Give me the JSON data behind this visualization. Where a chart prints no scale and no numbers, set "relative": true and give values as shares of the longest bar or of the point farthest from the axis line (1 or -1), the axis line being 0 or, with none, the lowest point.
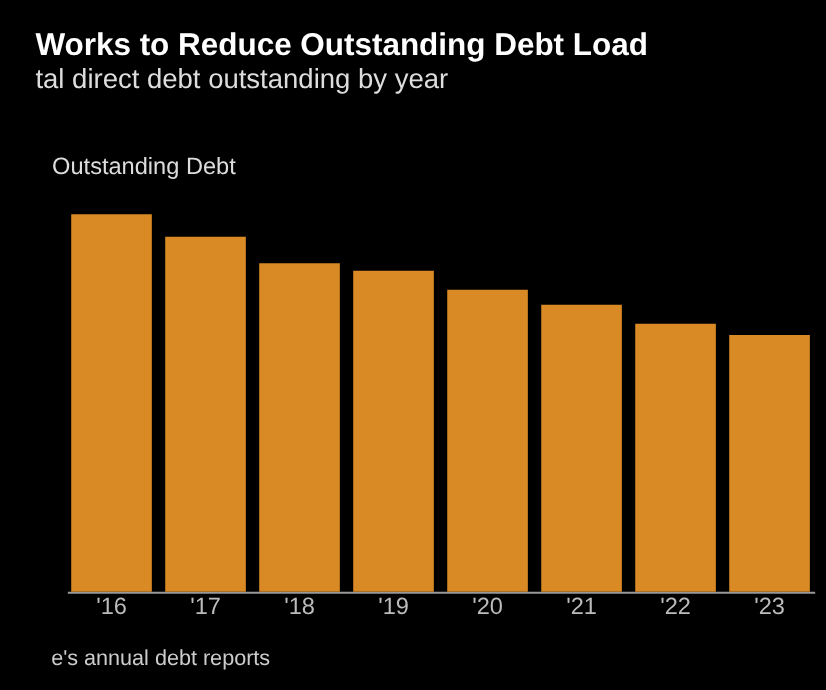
{
  "chart_data": {
    "type": "bar",
    "title": "Works to Reduce Outstanding Debt Load",
    "subtitle": "tal direct debt outstanding by year",
    "ylabel": "Outstanding Debt",
    "categories": [
      "'16",
      "'17",
      "'18",
      "'19",
      "'20",
      "'21",
      "'22",
      "'23"
    ],
    "values": [
      1,
      0.94,
      0.87,
      0.85,
      0.8,
      0.76,
      0.71,
      0.68
    ],
    "color": "#d98a25",
    "relative": true,
    "grid": false,
    "annotations": [
      "e's annual debt reports"
    ]
  }
}
